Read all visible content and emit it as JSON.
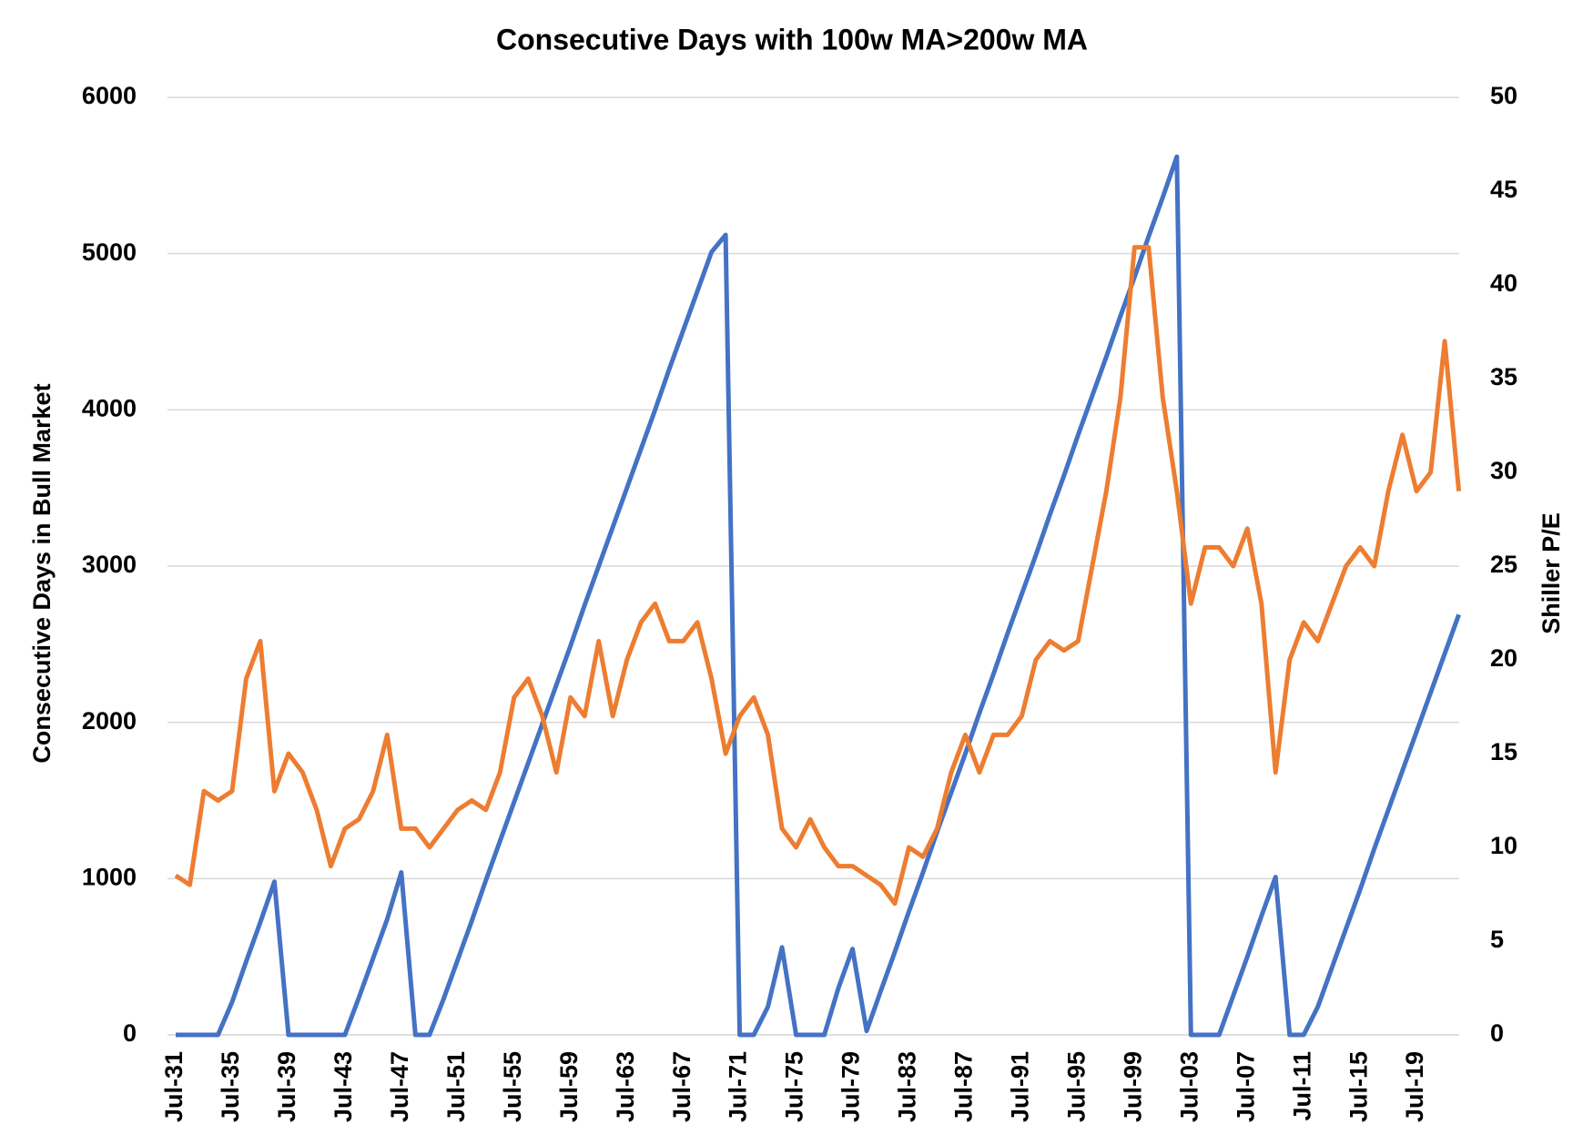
{
  "chart_data": {
    "type": "line",
    "title": "Consecutive Days with 100w MA>200w MA",
    "y_label": "Consecutive Days in Bull Market",
    "y2_label": "Shiller P/E",
    "categories": [
      "Jul-31",
      null,
      null,
      null,
      "Jul-35",
      null,
      null,
      null,
      "Jul-39",
      null,
      null,
      null,
      "Jul-43",
      null,
      null,
      null,
      "Jul-47",
      null,
      null,
      null,
      "Jul-51",
      null,
      null,
      null,
      "Jul-55",
      null,
      null,
      null,
      "Jul-59",
      null,
      null,
      null,
      "Jul-63",
      null,
      null,
      null,
      "Jul-67",
      null,
      null,
      null,
      "Jul-71",
      null,
      null,
      null,
      "Jul-75",
      null,
      null,
      null,
      "Jul-79",
      null,
      null,
      null,
      "Jul-83",
      null,
      null,
      null,
      "Jul-87",
      null,
      null,
      null,
      "Jul-91",
      null,
      null,
      null,
      "Jul-95",
      null,
      null,
      null,
      "Jul-99",
      null,
      null,
      null,
      "Jul-03",
      null,
      null,
      null,
      "Jul-07",
      null,
      null,
      null,
      "Jul-11",
      null,
      null,
      null,
      "Jul-15",
      null,
      null,
      null,
      "Jul-19",
      null,
      null,
      null
    ],
    "series": [
      {
        "color": "#4472c4",
        "axis": "y",
        "values": [
          0,
          0,
          0,
          0,
          210,
          470,
          720,
          980,
          0,
          0,
          0,
          0,
          0,
          240,
          490,
          740,
          1040,
          0,
          0,
          230,
          480,
          730,
          990,
          1240,
          1490,
          1740,
          1990,
          2240,
          2490,
          2750,
          3000,
          3250,
          3500,
          3750,
          4000,
          4260,
          4510,
          4760,
          5010,
          5120,
          0,
          0,
          180,
          560,
          0,
          0,
          0,
          300,
          550,
          25,
          280,
          530,
          790,
          1040,
          1300,
          1550,
          1800,
          2060,
          2310,
          2570,
          2820,
          3070,
          3330,
          3580,
          3840,
          4090,
          4340,
          4600,
          4850,
          5110,
          5360,
          5620,
          0,
          0,
          0,
          250,
          500,
          760,
          1010,
          0,
          0,
          180,
          430,
          680,
          930,
          1190,
          1440,
          1690,
          1940,
          2190,
          2440,
          2690
        ]
      },
      {
        "color": "#ed7d31",
        "axis": "y2",
        "values": [
          8.5,
          8,
          13,
          12.5,
          13,
          19,
          21,
          13,
          15,
          14,
          12,
          9,
          11,
          11.5,
          13,
          16,
          11,
          11,
          10,
          11,
          12,
          12.5,
          12,
          14,
          18,
          19,
          17,
          14,
          18,
          17,
          21,
          17,
          20,
          22,
          23,
          21,
          21,
          22,
          19,
          15,
          17,
          18,
          16,
          11,
          10,
          11.5,
          10,
          9,
          9,
          8.5,
          8,
          7,
          10,
          9.5,
          11,
          14,
          16,
          14,
          16,
          16,
          17,
          20,
          21,
          20.5,
          21,
          25,
          29,
          34,
          42,
          42,
          34,
          29,
          23,
          26,
          26,
          25,
          27,
          23,
          14,
          20,
          22,
          21,
          23,
          25,
          26,
          25,
          29,
          32,
          29,
          30,
          37,
          29
        ]
      }
    ],
    "ylim": [
      0,
      6000
    ],
    "yticks": [
      0,
      1000,
      2000,
      3000,
      4000,
      5000,
      6000
    ],
    "y2lim": [
      0,
      50
    ],
    "y2ticks": [
      0,
      5,
      10,
      15,
      20,
      25,
      30,
      35,
      40,
      45,
      50
    ],
    "grid": true
  }
}
